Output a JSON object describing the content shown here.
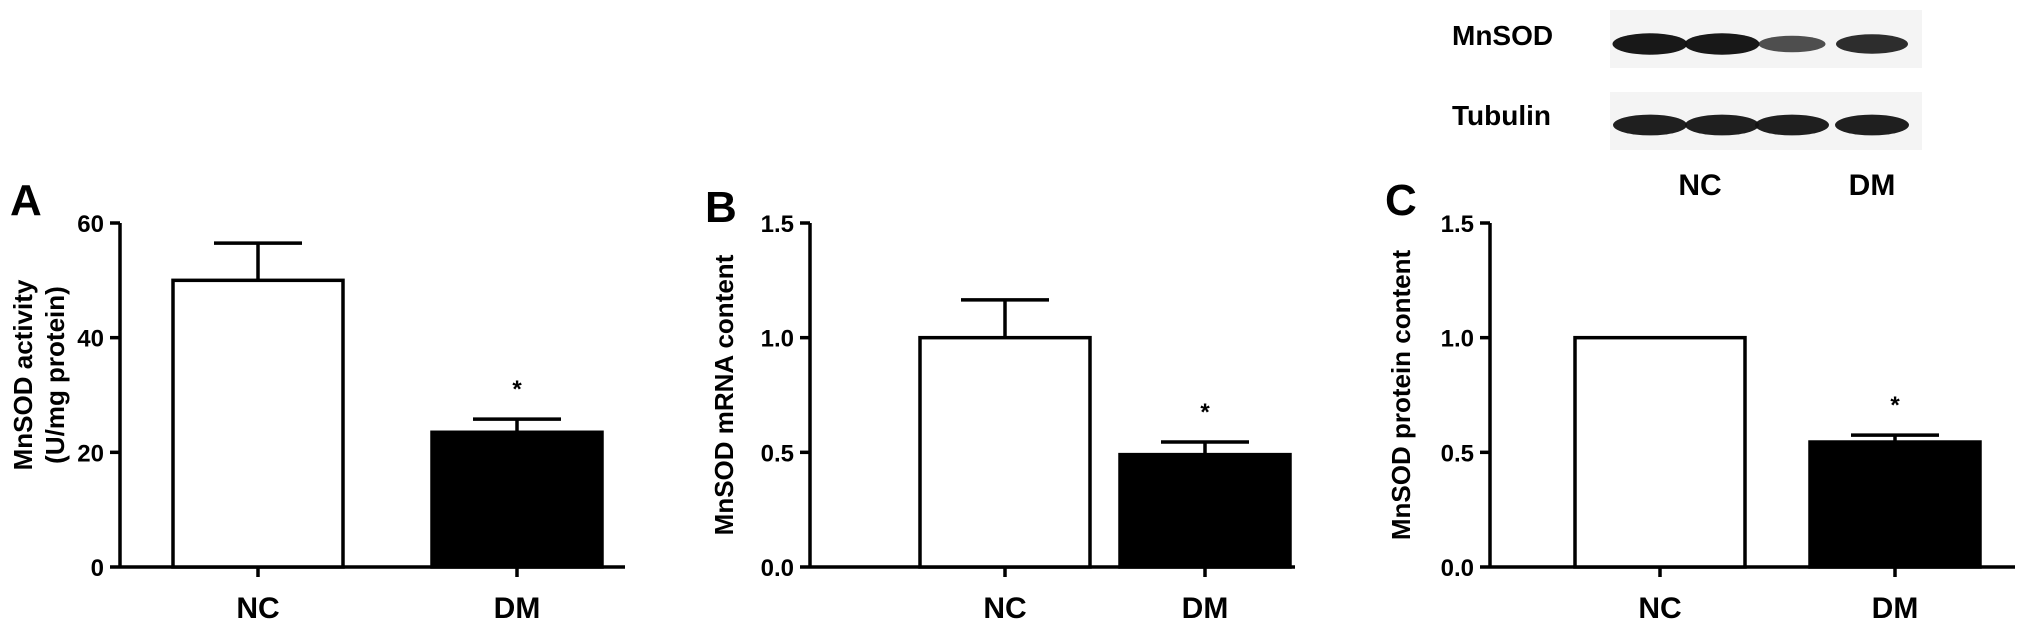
{
  "figure": {
    "blot": {
      "rows": [
        {
          "label": "MnSOD",
          "band_intensity": [
            0.95,
            0.95,
            0.55,
            0.8
          ]
        },
        {
          "label": "Tubulin",
          "band_intensity": [
            0.9,
            0.9,
            0.9,
            0.9
          ]
        }
      ],
      "groups": [
        "NC",
        "DM"
      ]
    }
  },
  "chart_data": [
    {
      "panel": "A",
      "type": "bar",
      "categories": [
        "NC",
        "DM"
      ],
      "values": [
        50,
        23.5
      ],
      "errors": [
        6.5,
        2.3
      ],
      "bar_colors": [
        "#ffffff",
        "#000000"
      ],
      "significance": [
        "",
        "*"
      ],
      "ylabel": "MnSOD activity",
      "ylabel2": "(U/mg protein)",
      "ylim": [
        0,
        60
      ],
      "yticks": [
        "0",
        "20",
        "40",
        "60"
      ],
      "grid": false
    },
    {
      "panel": "B",
      "type": "bar",
      "categories": [
        "NC",
        "DM"
      ],
      "values": [
        1.0,
        0.49
      ],
      "errors": [
        0.165,
        0.055
      ],
      "bar_colors": [
        "#ffffff",
        "#000000"
      ],
      "significance": [
        "",
        "*"
      ],
      "ylabel": "MnSOD mRNA content",
      "ylim": [
        0,
        1.5
      ],
      "yticks": [
        "0.0",
        "0.5",
        "1.0",
        "1.5"
      ],
      "grid": false
    },
    {
      "panel": "C",
      "type": "bar",
      "categories": [
        "NC",
        "DM"
      ],
      "values": [
        1.0,
        0.545
      ],
      "errors": [
        0,
        0.03
      ],
      "bar_colors": [
        "#ffffff",
        "#000000"
      ],
      "significance": [
        "",
        "*"
      ],
      "ylabel": "MnSOD protein content",
      "ylim": [
        0,
        1.5
      ],
      "yticks": [
        "0.0",
        "0.5",
        "1.0",
        "1.5"
      ],
      "grid": false
    }
  ]
}
